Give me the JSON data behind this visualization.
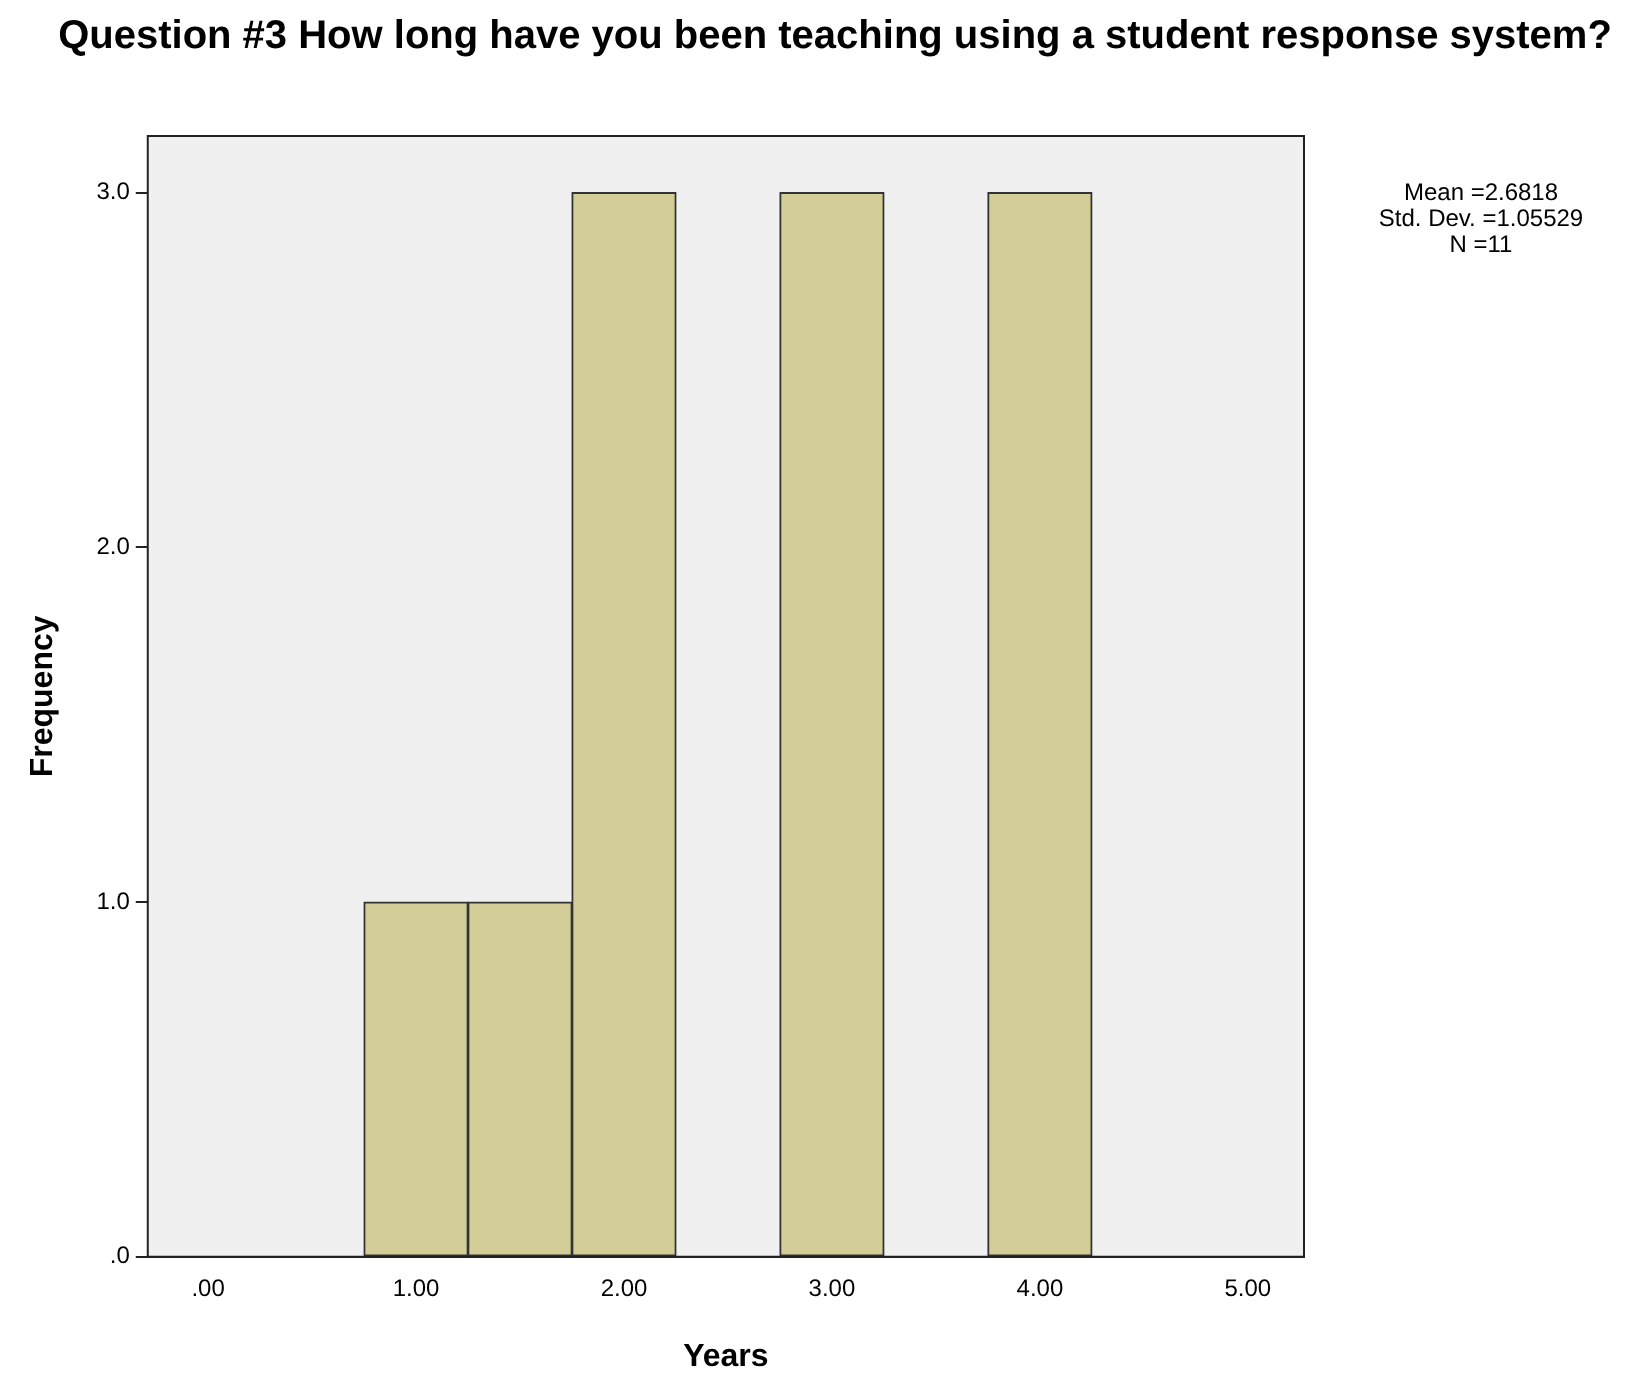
{
  "chart_data": {
    "type": "histogram",
    "title": "Question #3 How long have you been teaching using a student response system?",
    "xlabel": "Years",
    "ylabel": "Frequency",
    "bins": [
      0.75,
      1.25,
      1.75,
      2.25,
      2.75,
      3.25,
      3.75,
      4.25
    ],
    "values": [
      1,
      1,
      3,
      0,
      3,
      0,
      3
    ],
    "color": "#d3ce97",
    "xlim": [
      -0.29,
      5.27
    ],
    "xticks": [
      {
        "value": 0,
        "label": ".00"
      },
      {
        "value": 1,
        "label": "1.00"
      },
      {
        "value": 2,
        "label": "2.00"
      },
      {
        "value": 3,
        "label": "3.00"
      },
      {
        "value": 4,
        "label": "4.00"
      },
      {
        "value": 5,
        "label": "5.00"
      }
    ],
    "ylim": [
      0,
      3.16
    ],
    "yticks": [
      {
        "value": 0,
        "label": ".0"
      },
      {
        "value": 1,
        "label": "1.0"
      },
      {
        "value": 2,
        "label": "2.0"
      },
      {
        "value": 3,
        "label": "3.0"
      }
    ],
    "annotations": [
      "Mean =2.6818",
      "Std. Dev. =1.05529",
      "N =11"
    ],
    "grid": false,
    "legend": false
  }
}
